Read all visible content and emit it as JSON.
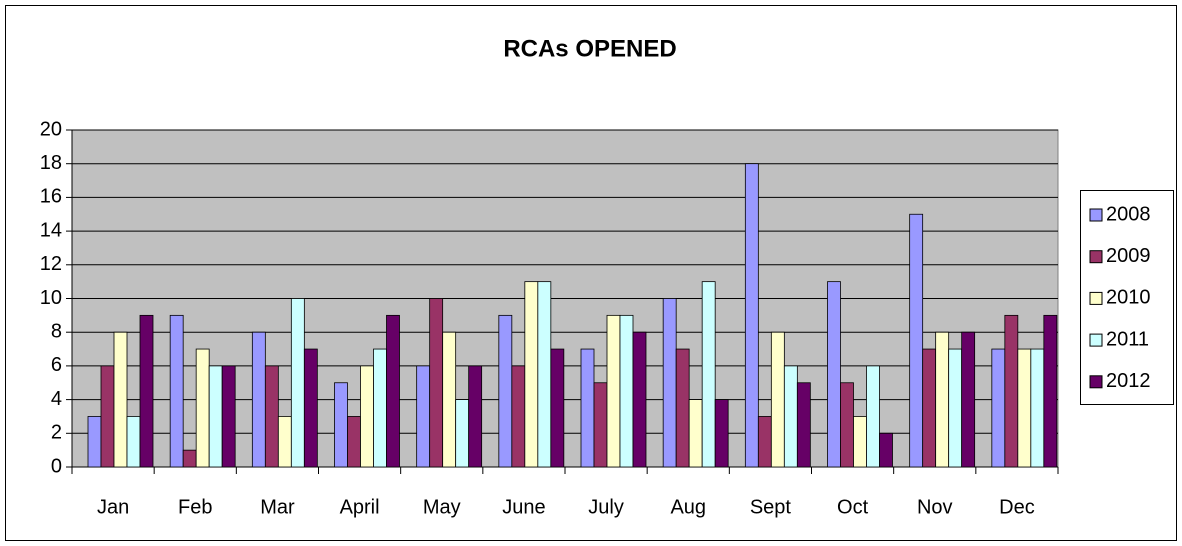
{
  "chart_data": {
    "type": "bar",
    "title": "RCAs OPENED",
    "categories": [
      "Jan",
      "Feb",
      "Mar",
      "April",
      "May",
      "June",
      "July",
      "Aug",
      "Sept",
      "Oct",
      "Nov",
      "Dec"
    ],
    "series": [
      {
        "name": "2008",
        "color": "#9999ff",
        "values": [
          3,
          9,
          8,
          5,
          6,
          9,
          7,
          10,
          18,
          11,
          15,
          7
        ]
      },
      {
        "name": "2009",
        "color": "#993366",
        "values": [
          6,
          1,
          6,
          3,
          10,
          6,
          5,
          7,
          3,
          5,
          7,
          9
        ]
      },
      {
        "name": "2010",
        "color": "#ffffcc",
        "values": [
          8,
          7,
          3,
          6,
          8,
          11,
          9,
          4,
          8,
          3,
          8,
          7
        ]
      },
      {
        "name": "2011",
        "color": "#ccffff",
        "values": [
          3,
          6,
          10,
          7,
          4,
          11,
          9,
          11,
          6,
          6,
          7,
          7
        ]
      },
      {
        "name": "2012",
        "color": "#660066",
        "values": [
          9,
          6,
          7,
          9,
          6,
          7,
          8,
          4,
          5,
          2,
          8,
          9
        ]
      }
    ],
    "ylim": [
      0,
      20
    ],
    "yticks": [
      0,
      2,
      4,
      6,
      8,
      10,
      12,
      14,
      16,
      18,
      20
    ],
    "grid": true,
    "legend": "right"
  }
}
